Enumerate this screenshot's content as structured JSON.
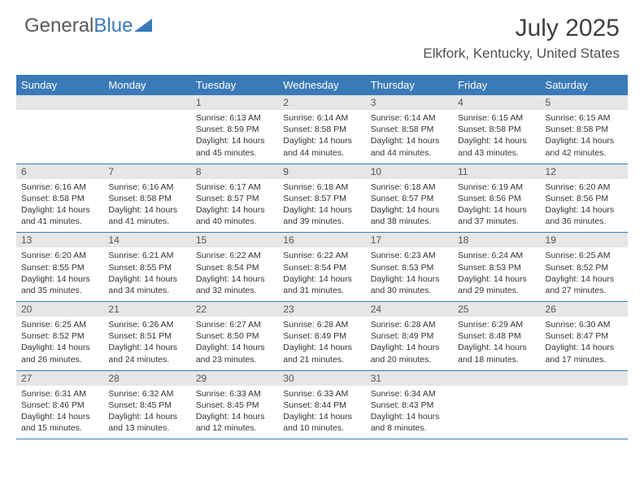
{
  "brand": {
    "word1": "General",
    "word2": "Blue"
  },
  "title": "July 2025",
  "location": "Elkfork, Kentucky, United States",
  "theme": {
    "accent": "#3a7ab8",
    "header_text": "#ffffff",
    "daynum_bg": "#e6e6e6",
    "body_text": "#333333",
    "title_color": "#404040"
  },
  "dayHeaders": [
    "Sunday",
    "Monday",
    "Tuesday",
    "Wednesday",
    "Thursday",
    "Friday",
    "Saturday"
  ],
  "weeks": [
    [
      null,
      null,
      {
        "n": "1",
        "sr": "6:13 AM",
        "ss": "8:59 PM",
        "dl": "14 hours and 45 minutes."
      },
      {
        "n": "2",
        "sr": "6:14 AM",
        "ss": "8:58 PM",
        "dl": "14 hours and 44 minutes."
      },
      {
        "n": "3",
        "sr": "6:14 AM",
        "ss": "8:58 PM",
        "dl": "14 hours and 44 minutes."
      },
      {
        "n": "4",
        "sr": "6:15 AM",
        "ss": "8:58 PM",
        "dl": "14 hours and 43 minutes."
      },
      {
        "n": "5",
        "sr": "6:15 AM",
        "ss": "8:58 PM",
        "dl": "14 hours and 42 minutes."
      }
    ],
    [
      {
        "n": "6",
        "sr": "6:16 AM",
        "ss": "8:58 PM",
        "dl": "14 hours and 41 minutes."
      },
      {
        "n": "7",
        "sr": "6:16 AM",
        "ss": "8:58 PM",
        "dl": "14 hours and 41 minutes."
      },
      {
        "n": "8",
        "sr": "6:17 AM",
        "ss": "8:57 PM",
        "dl": "14 hours and 40 minutes."
      },
      {
        "n": "9",
        "sr": "6:18 AM",
        "ss": "8:57 PM",
        "dl": "14 hours and 39 minutes."
      },
      {
        "n": "10",
        "sr": "6:18 AM",
        "ss": "8:57 PM",
        "dl": "14 hours and 38 minutes."
      },
      {
        "n": "11",
        "sr": "6:19 AM",
        "ss": "8:56 PM",
        "dl": "14 hours and 37 minutes."
      },
      {
        "n": "12",
        "sr": "6:20 AM",
        "ss": "8:56 PM",
        "dl": "14 hours and 36 minutes."
      }
    ],
    [
      {
        "n": "13",
        "sr": "6:20 AM",
        "ss": "8:55 PM",
        "dl": "14 hours and 35 minutes."
      },
      {
        "n": "14",
        "sr": "6:21 AM",
        "ss": "8:55 PM",
        "dl": "14 hours and 34 minutes."
      },
      {
        "n": "15",
        "sr": "6:22 AM",
        "ss": "8:54 PM",
        "dl": "14 hours and 32 minutes."
      },
      {
        "n": "16",
        "sr": "6:22 AM",
        "ss": "8:54 PM",
        "dl": "14 hours and 31 minutes."
      },
      {
        "n": "17",
        "sr": "6:23 AM",
        "ss": "8:53 PM",
        "dl": "14 hours and 30 minutes."
      },
      {
        "n": "18",
        "sr": "6:24 AM",
        "ss": "8:53 PM",
        "dl": "14 hours and 29 minutes."
      },
      {
        "n": "19",
        "sr": "6:25 AM",
        "ss": "8:52 PM",
        "dl": "14 hours and 27 minutes."
      }
    ],
    [
      {
        "n": "20",
        "sr": "6:25 AM",
        "ss": "8:52 PM",
        "dl": "14 hours and 26 minutes."
      },
      {
        "n": "21",
        "sr": "6:26 AM",
        "ss": "8:51 PM",
        "dl": "14 hours and 24 minutes."
      },
      {
        "n": "22",
        "sr": "6:27 AM",
        "ss": "8:50 PM",
        "dl": "14 hours and 23 minutes."
      },
      {
        "n": "23",
        "sr": "6:28 AM",
        "ss": "8:49 PM",
        "dl": "14 hours and 21 minutes."
      },
      {
        "n": "24",
        "sr": "6:28 AM",
        "ss": "8:49 PM",
        "dl": "14 hours and 20 minutes."
      },
      {
        "n": "25",
        "sr": "6:29 AM",
        "ss": "8:48 PM",
        "dl": "14 hours and 18 minutes."
      },
      {
        "n": "26",
        "sr": "6:30 AM",
        "ss": "8:47 PM",
        "dl": "14 hours and 17 minutes."
      }
    ],
    [
      {
        "n": "27",
        "sr": "6:31 AM",
        "ss": "8:46 PM",
        "dl": "14 hours and 15 minutes."
      },
      {
        "n": "28",
        "sr": "6:32 AM",
        "ss": "8:45 PM",
        "dl": "14 hours and 13 minutes."
      },
      {
        "n": "29",
        "sr": "6:33 AM",
        "ss": "8:45 PM",
        "dl": "14 hours and 12 minutes."
      },
      {
        "n": "30",
        "sr": "6:33 AM",
        "ss": "8:44 PM",
        "dl": "14 hours and 10 minutes."
      },
      {
        "n": "31",
        "sr": "6:34 AM",
        "ss": "8:43 PM",
        "dl": "14 hours and 8 minutes."
      },
      null,
      null
    ]
  ],
  "labels": {
    "sunrise": "Sunrise: ",
    "sunset": "Sunset: ",
    "daylight": "Daylight: "
  }
}
